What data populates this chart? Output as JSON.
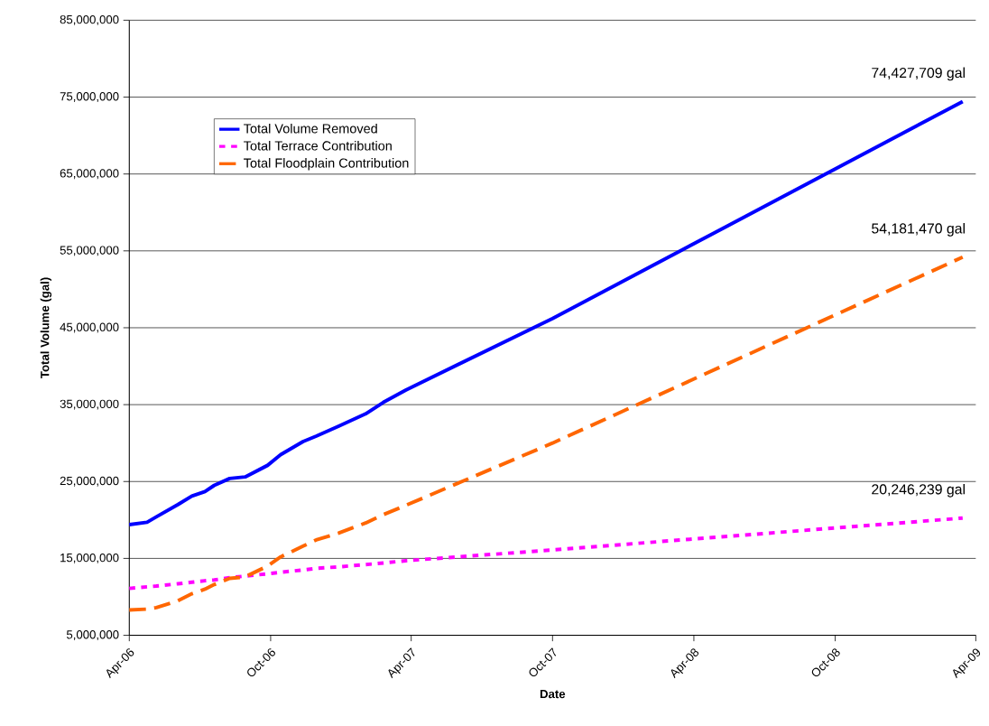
{
  "chart_data": {
    "type": "line",
    "xlabel": "Date",
    "ylabel": "Total Volume (gal)",
    "x": [
      "2006-04-01",
      "2006-04-24",
      "2006-05-06",
      "2006-06-03",
      "2006-06-21",
      "2006-07-08",
      "2006-07-20",
      "2006-08-09",
      "2006-08-29",
      "2006-09-27",
      "2006-10-14",
      "2006-11-12",
      "2006-11-29",
      "2006-12-28",
      "2007-02-01",
      "2007-02-24",
      "2007-03-25",
      "2007-10-01",
      "2009-03-15"
    ],
    "series": [
      {
        "name": "Total Volume Removed",
        "color": "#0000ff",
        "line_style": "solid",
        "values": [
          19400000,
          19700000,
          20400000,
          22000000,
          23100000,
          23700000,
          24500000,
          25400000,
          25600000,
          27100000,
          28500000,
          30200000,
          30900000,
          32200000,
          33800000,
          35300000,
          36900000,
          46200000,
          74427709
        ]
      },
      {
        "name": "Total Terrace Contribution",
        "color": "#ff00ff",
        "line_style": "dotted",
        "values": [
          11100000,
          11300000,
          11400000,
          11700000,
          11900000,
          12100000,
          12200000,
          12500000,
          12700000,
          13000000,
          13200000,
          13500000,
          13700000,
          13900000,
          14200000,
          14400000,
          14700000,
          16100000,
          20246239
        ]
      },
      {
        "name": "Total Floodplain Contribution",
        "color": "#ff6600",
        "line_style": "dashed",
        "values": [
          8300000,
          8400000,
          8600000,
          9500000,
          10400000,
          11000000,
          11600000,
          12400000,
          12600000,
          14000000,
          15200000,
          16600000,
          17400000,
          18300000,
          19600000,
          20700000,
          21900000,
          30000000,
          54181470
        ]
      }
    ],
    "xlim": [
      "2006-04-01",
      "2009-04-01"
    ],
    "xticks": [
      {
        "value": "2006-04-01",
        "label": "Apr-06"
      },
      {
        "value": "2006-10-01",
        "label": "Oct-06"
      },
      {
        "value": "2007-04-01",
        "label": "Apr-07"
      },
      {
        "value": "2007-10-01",
        "label": "Oct-07"
      },
      {
        "value": "2008-04-01",
        "label": "Apr-08"
      },
      {
        "value": "2008-10-01",
        "label": "Oct-08"
      },
      {
        "value": "2009-04-01",
        "label": "Apr-09"
      }
    ],
    "ylim": [
      5000000,
      85000000
    ],
    "yticks": [
      {
        "value": 5000000,
        "label": "5,000,000"
      },
      {
        "value": 15000000,
        "label": "15,000,000"
      },
      {
        "value": 25000000,
        "label": "25,000,000"
      },
      {
        "value": 35000000,
        "label": "35,000,000"
      },
      {
        "value": 45000000,
        "label": "45,000,000"
      },
      {
        "value": 55000000,
        "label": "55,000,000"
      },
      {
        "value": 65000000,
        "label": "65,000,000"
      },
      {
        "value": 75000000,
        "label": "75,000,000"
      },
      {
        "value": 85000000,
        "label": "85,000,000"
      }
    ],
    "grid": "y",
    "legend": "top left",
    "annotations": [
      {
        "text": "74,427,709 gal",
        "x": "2009-03-15",
        "y": 74427709
      },
      {
        "text": "54,181,470 gal",
        "x": "2009-03-15",
        "y": 54181470
      },
      {
        "text": "20,246,239 gal",
        "x": "2009-03-15",
        "y": 20246239
      }
    ]
  }
}
